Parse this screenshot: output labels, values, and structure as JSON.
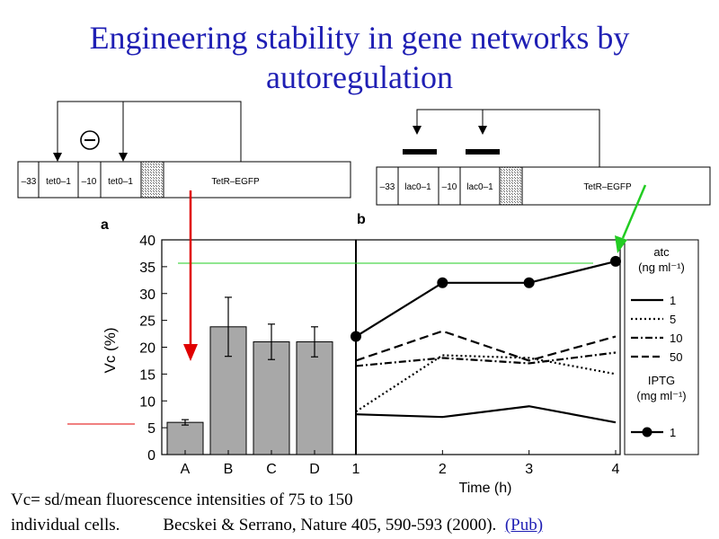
{
  "slide": {
    "title_line1": "Engineering stability in gene networks by",
    "title_line2": "autoregulation",
    "caption_line1": "Vc= sd/mean fluorescence intensities of 75 to 150",
    "caption_line2_prefix": "individual cells.",
    "citation": "Becskei & Serrano, Nature 405, 590-593 (2000).",
    "pub_link": "(Pub)"
  },
  "diagram_a": {
    "repression_symbol": "Θ",
    "segments": [
      "–33",
      "tet0–1",
      "–10",
      "tet0–1",
      "TetR–EGFP"
    ]
  },
  "diagram_b": {
    "segments": [
      "–33",
      "lac0–1",
      "–10",
      "lac0–1",
      "TetR–EGFP"
    ]
  },
  "colors": {
    "title": "#1f1fb4",
    "red_arrow": "#e00000",
    "green_arrow": "#22cc22",
    "bars": "#a8a8a8"
  },
  "chart_data": [
    {
      "type": "bar",
      "panel_label": "a",
      "ylabel": "Vc (%)",
      "ylim": [
        0,
        40
      ],
      "yticks": [
        0,
        5,
        10,
        15,
        20,
        25,
        30,
        35,
        40
      ],
      "categories": [
        "A",
        "B",
        "C",
        "D"
      ],
      "values": [
        6,
        23.8,
        21,
        21
      ],
      "errors": [
        0.5,
        5.5,
        3.3,
        2.8
      ]
    },
    {
      "type": "line",
      "panel_label": "b",
      "xlabel": "Time (h)",
      "xticks": [
        1,
        2,
        3,
        4
      ],
      "ylim": [
        0,
        40
      ],
      "legend_title_1": "atc",
      "legend_unit_1": "(ng ml⁻¹)",
      "legend_title_2": "IPTG",
      "legend_unit_2": "(mg ml⁻¹)",
      "series": [
        {
          "name": "1",
          "style": "solid",
          "x": [
            1,
            2,
            3,
            4
          ],
          "y": [
            7.5,
            7,
            9,
            6
          ]
        },
        {
          "name": "5",
          "style": "dotted",
          "x": [
            1,
            2,
            3,
            4
          ],
          "y": [
            8,
            18.5,
            18,
            15
          ]
        },
        {
          "name": "10",
          "style": "dashdot",
          "x": [
            1,
            2,
            3,
            4
          ],
          "y": [
            16.5,
            18,
            17,
            19
          ]
        },
        {
          "name": "50",
          "style": "dashed",
          "x": [
            1,
            2,
            3,
            4
          ],
          "y": [
            17.5,
            23,
            17.5,
            22
          ]
        },
        {
          "name": "1",
          "style": "markers",
          "group": "IPTG",
          "x": [
            1,
            2,
            3,
            4
          ],
          "y": [
            22,
            32,
            32,
            36
          ]
        }
      ]
    }
  ]
}
